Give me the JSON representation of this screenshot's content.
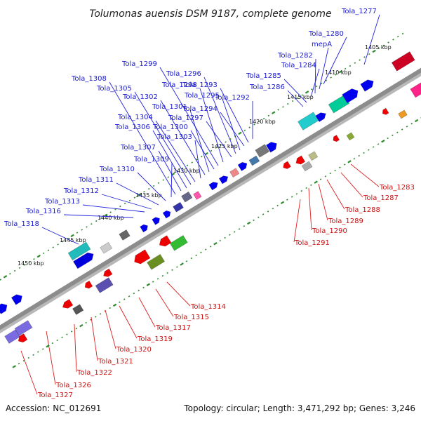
{
  "title": "Tolumonas auensis DSM 9187, complete genome",
  "footer": {
    "accession": "Accession: NC_012691",
    "summary": "Topology: circular; Length: 3,471,292 bp; Genes: 3,246"
  },
  "scale_labels": [
    "1405 kbp",
    "1410 kbp",
    "1415 kbp",
    "1420 kbp",
    "1425 kbp",
    "1430 kbp",
    "1435 kbp",
    "1440 kbp",
    "1445 kbp",
    "1450 kbp"
  ],
  "upper_labels": [
    "Tola_1277",
    "Tola_1280",
    "mepA",
    "Tola_1282",
    "Tola_1284",
    "Tola_1285",
    "Tola_1286",
    "Tola_1292",
    "Tola_1293",
    "Tola_1294",
    "Tola_1295",
    "Tola_1296",
    "Tola_1297",
    "Tola_1298",
    "Tola_1299",
    "Tola_1300",
    "Tola_1301",
    "Tola_1302",
    "Tola_1303",
    "Tola_1304",
    "Tola_1305",
    "Tola_1306",
    "Tola_1307",
    "Tola_1308",
    "Tola_1309",
    "Tola_1310",
    "Tola_1311",
    "Tola_1312",
    "Tola_1313",
    "Tola_1316",
    "Tola_1318"
  ],
  "lower_labels": [
    "Tola_1283",
    "Tola_1287",
    "Tola_1288",
    "Tola_1289",
    "Tola_1290",
    "Tola_1291",
    "Tola_1314",
    "Tola_1315",
    "Tola_1317",
    "Tola_1319",
    "Tola_1320",
    "Tola_1321",
    "Tola_1322",
    "Tola_1326",
    "Tola_1327"
  ],
  "colors": {
    "upper_strand": "#0000ee",
    "lower_strand": "#ee0000",
    "backbone": "#8c8c8c",
    "scale_ticks": "#2e8b2e"
  }
}
